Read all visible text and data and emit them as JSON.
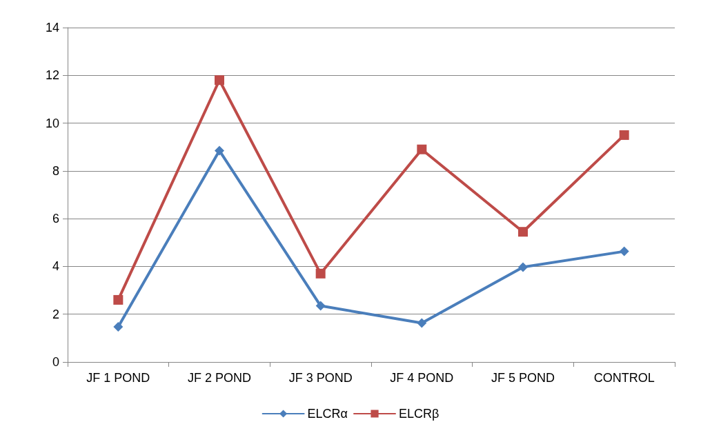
{
  "chart_data": {
    "type": "line",
    "categories": [
      "JF 1 POND",
      "JF 2 POND",
      "JF 3 POND",
      "JF 4 POND",
      "JF 5 POND",
      "CONTROL"
    ],
    "series": [
      {
        "name": "ELCRα",
        "color": "#4a7ebb",
        "marker": "diamond",
        "values": [
          1.47,
          8.85,
          2.35,
          1.63,
          3.97,
          4.63
        ]
      },
      {
        "name": "ELCRβ",
        "color": "#be4b48",
        "marker": "square",
        "values": [
          2.6,
          11.8,
          3.7,
          8.9,
          5.45,
          9.5
        ]
      }
    ],
    "ylim": [
      0,
      14
    ],
    "yticks": [
      0,
      2,
      4,
      6,
      8,
      10,
      12,
      14
    ],
    "grid": "y",
    "legend": "bottom",
    "line_style": "solid"
  }
}
